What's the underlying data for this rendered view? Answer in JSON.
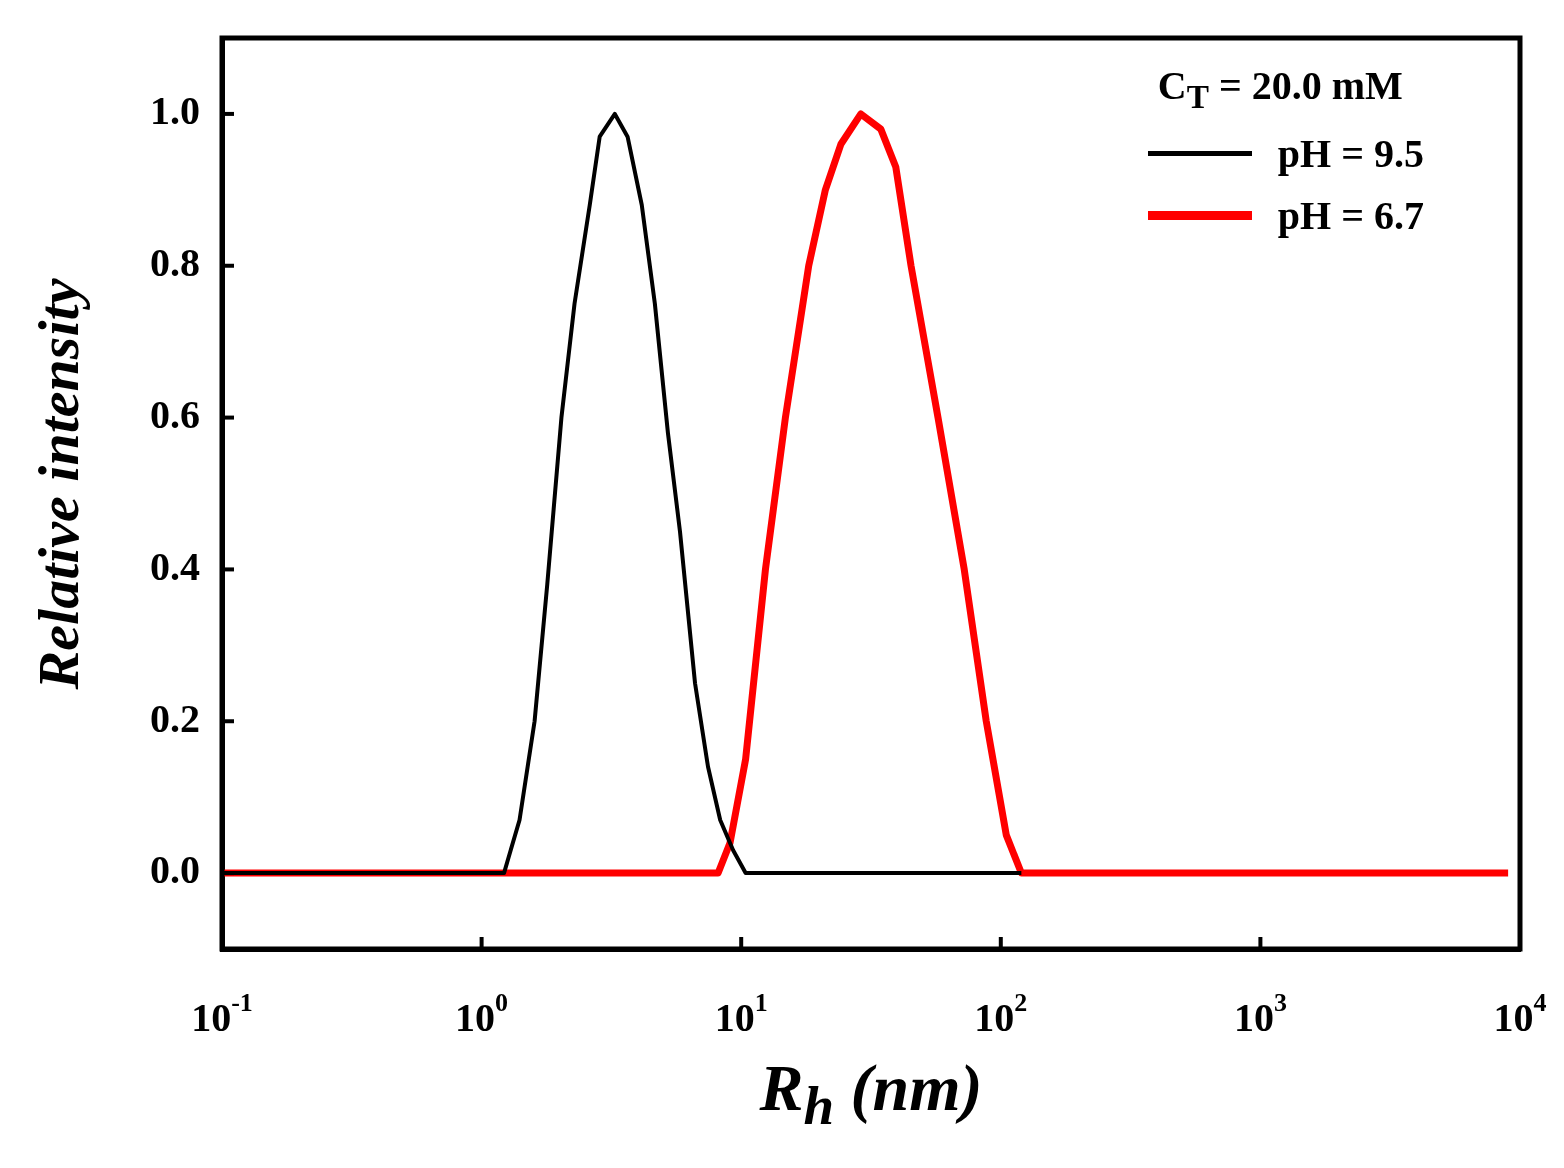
{
  "chart_data": {
    "type": "line",
    "xlabel": "R$_{h}$ (nm)",
    "ylabel": "Relative intensity",
    "legend_title": "C$_{T}$ = 20.0 mM",
    "legend": "top right",
    "log": "x",
    "grid": false,
    "line_style": "solid",
    "xlim": [
      0.1,
      10000
    ],
    "xticks": [
      {
        "value": 0.1,
        "label": "10$^{-1}$"
      },
      {
        "value": 1,
        "label": "10$^{0}$"
      },
      {
        "value": 10,
        "label": "10$^{1}$"
      },
      {
        "value": 100,
        "label": "10$^{2}$"
      },
      {
        "value": 1000,
        "label": "10$^{3}$"
      },
      {
        "value": 10000,
        "label": "10$^{4}$"
      }
    ],
    "ylim": [
      -0.1,
      1.1
    ],
    "yticks": [
      {
        "value": 0,
        "label": "0.0"
      },
      {
        "value": 0.2,
        "label": "0.2"
      },
      {
        "value": 0.4,
        "label": "0.4"
      },
      {
        "value": 0.6,
        "label": "0.6"
      },
      {
        "value": 0.8,
        "label": "0.8"
      },
      {
        "value": 1,
        "label": "1.0"
      }
    ],
    "series": [
      {
        "name": "pH = 9.5",
        "color": "#000000",
        "x": [
          0.1,
          1.22,
          1.4,
          1.6,
          1.79,
          2.03,
          2.28,
          2.61,
          2.85,
          3.26,
          3.65,
          4.14,
          4.65,
          5.22,
          5.81,
          6.64,
          7.45,
          8.3,
          9.31,
          10.4,
          120
        ],
        "values": [
          0,
          0,
          0.07,
          0.2,
          0.38,
          0.6,
          0.75,
          0.88,
          0.97,
          1.0,
          0.97,
          0.88,
          0.75,
          0.58,
          0.45,
          0.25,
          0.14,
          0.07,
          0.03,
          0,
          0
        ]
      },
      {
        "name": "pH = 6.7",
        "color": "#ff0000",
        "x": [
          0.1,
          8.15,
          9.06,
          10.4,
          12.4,
          14.8,
          18.2,
          21.1,
          24.2,
          28.9,
          34.5,
          39.4,
          45.1,
          57.3,
          72.3,
          87.9,
          105,
          120,
          9000
        ],
        "values": [
          0,
          0,
          0.04,
          0.15,
          0.4,
          0.6,
          0.8,
          0.9,
          0.96,
          1.0,
          0.98,
          0.93,
          0.8,
          0.6,
          0.4,
          0.2,
          0.05,
          0,
          0
        ]
      }
    ]
  }
}
